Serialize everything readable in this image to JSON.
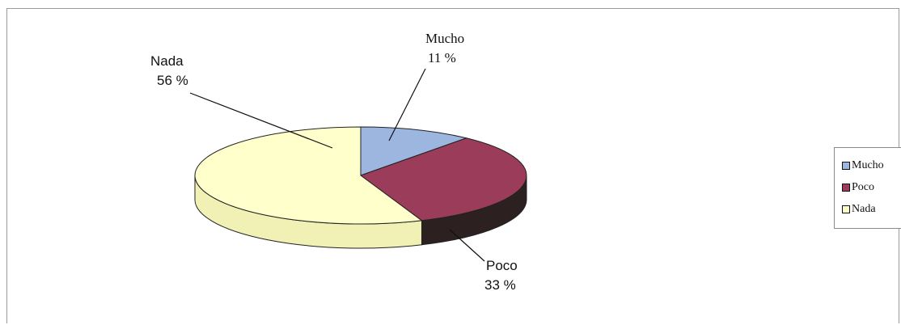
{
  "chart_data": {
    "type": "pie",
    "title": "",
    "slices": [
      {
        "label": "Mucho",
        "value": 11,
        "pct_text": "11 %",
        "color": "#9db6e0",
        "side_color": "#5b6f93"
      },
      {
        "label": "Poco",
        "value": 33,
        "pct_text": "33 %",
        "color": "#9b3d5a",
        "side_color": "#2c2020"
      },
      {
        "label": "Nada",
        "value": 56,
        "pct_text": "56 %",
        "color": "#ffffcc",
        "side_color": "#f1f0b5"
      }
    ],
    "legend": {
      "position": "right",
      "items": [
        "Mucho",
        "Poco",
        "Nada"
      ]
    }
  }
}
